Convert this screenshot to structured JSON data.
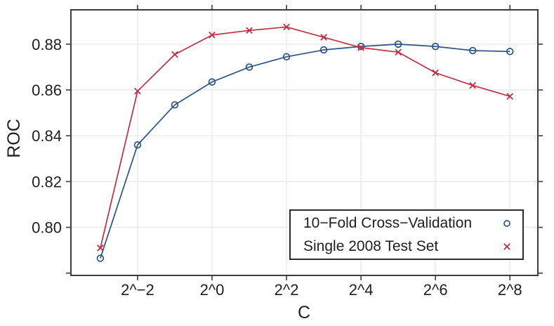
{
  "chart_data": {
    "type": "line",
    "title": "",
    "xlabel": "C",
    "ylabel": "ROC",
    "x_scale": "log2",
    "x_log2": [
      -3,
      -2,
      -1,
      0,
      1,
      2,
      3,
      4,
      5,
      6,
      7,
      8
    ],
    "x_ticks_log2": [
      -2,
      0,
      2,
      4,
      6,
      8
    ],
    "x_tick_labels": [
      "2^−2",
      "2^0",
      "2^2",
      "2^4",
      "2^6",
      "2^8"
    ],
    "y_ticks": [
      0.78,
      0.8,
      0.82,
      0.84,
      0.86,
      0.88
    ],
    "y_tick_labels": [
      "",
      "0.80",
      "0.82",
      "0.84",
      "0.86",
      "0.88"
    ],
    "xlim_log2": [
      -3.79,
      8.75
    ],
    "ylim": [
      0.779,
      0.895
    ],
    "grid": true,
    "legend": {
      "position": "inside-bottom-right",
      "border": true
    },
    "series": [
      {
        "name": "10−Fold Cross−Validation",
        "marker": "circle",
        "color": "#2c5484",
        "values": [
          0.7865,
          0.836,
          0.8535,
          0.8635,
          0.87,
          0.8745,
          0.8775,
          0.879,
          0.88,
          0.879,
          0.8772,
          0.8768
        ]
      },
      {
        "name": "Single 2008 Test Set",
        "marker": "x",
        "color": "#bf3042",
        "values": [
          0.791,
          0.8595,
          0.8755,
          0.884,
          0.886,
          0.8875,
          0.883,
          0.8785,
          0.8765,
          0.8675,
          0.862,
          0.8572
        ]
      }
    ],
    "colors": {
      "grid": "#e6e8ea",
      "axis": "#3d3d3d",
      "text": "#1f1f1f",
      "background": "#ffffff"
    }
  }
}
